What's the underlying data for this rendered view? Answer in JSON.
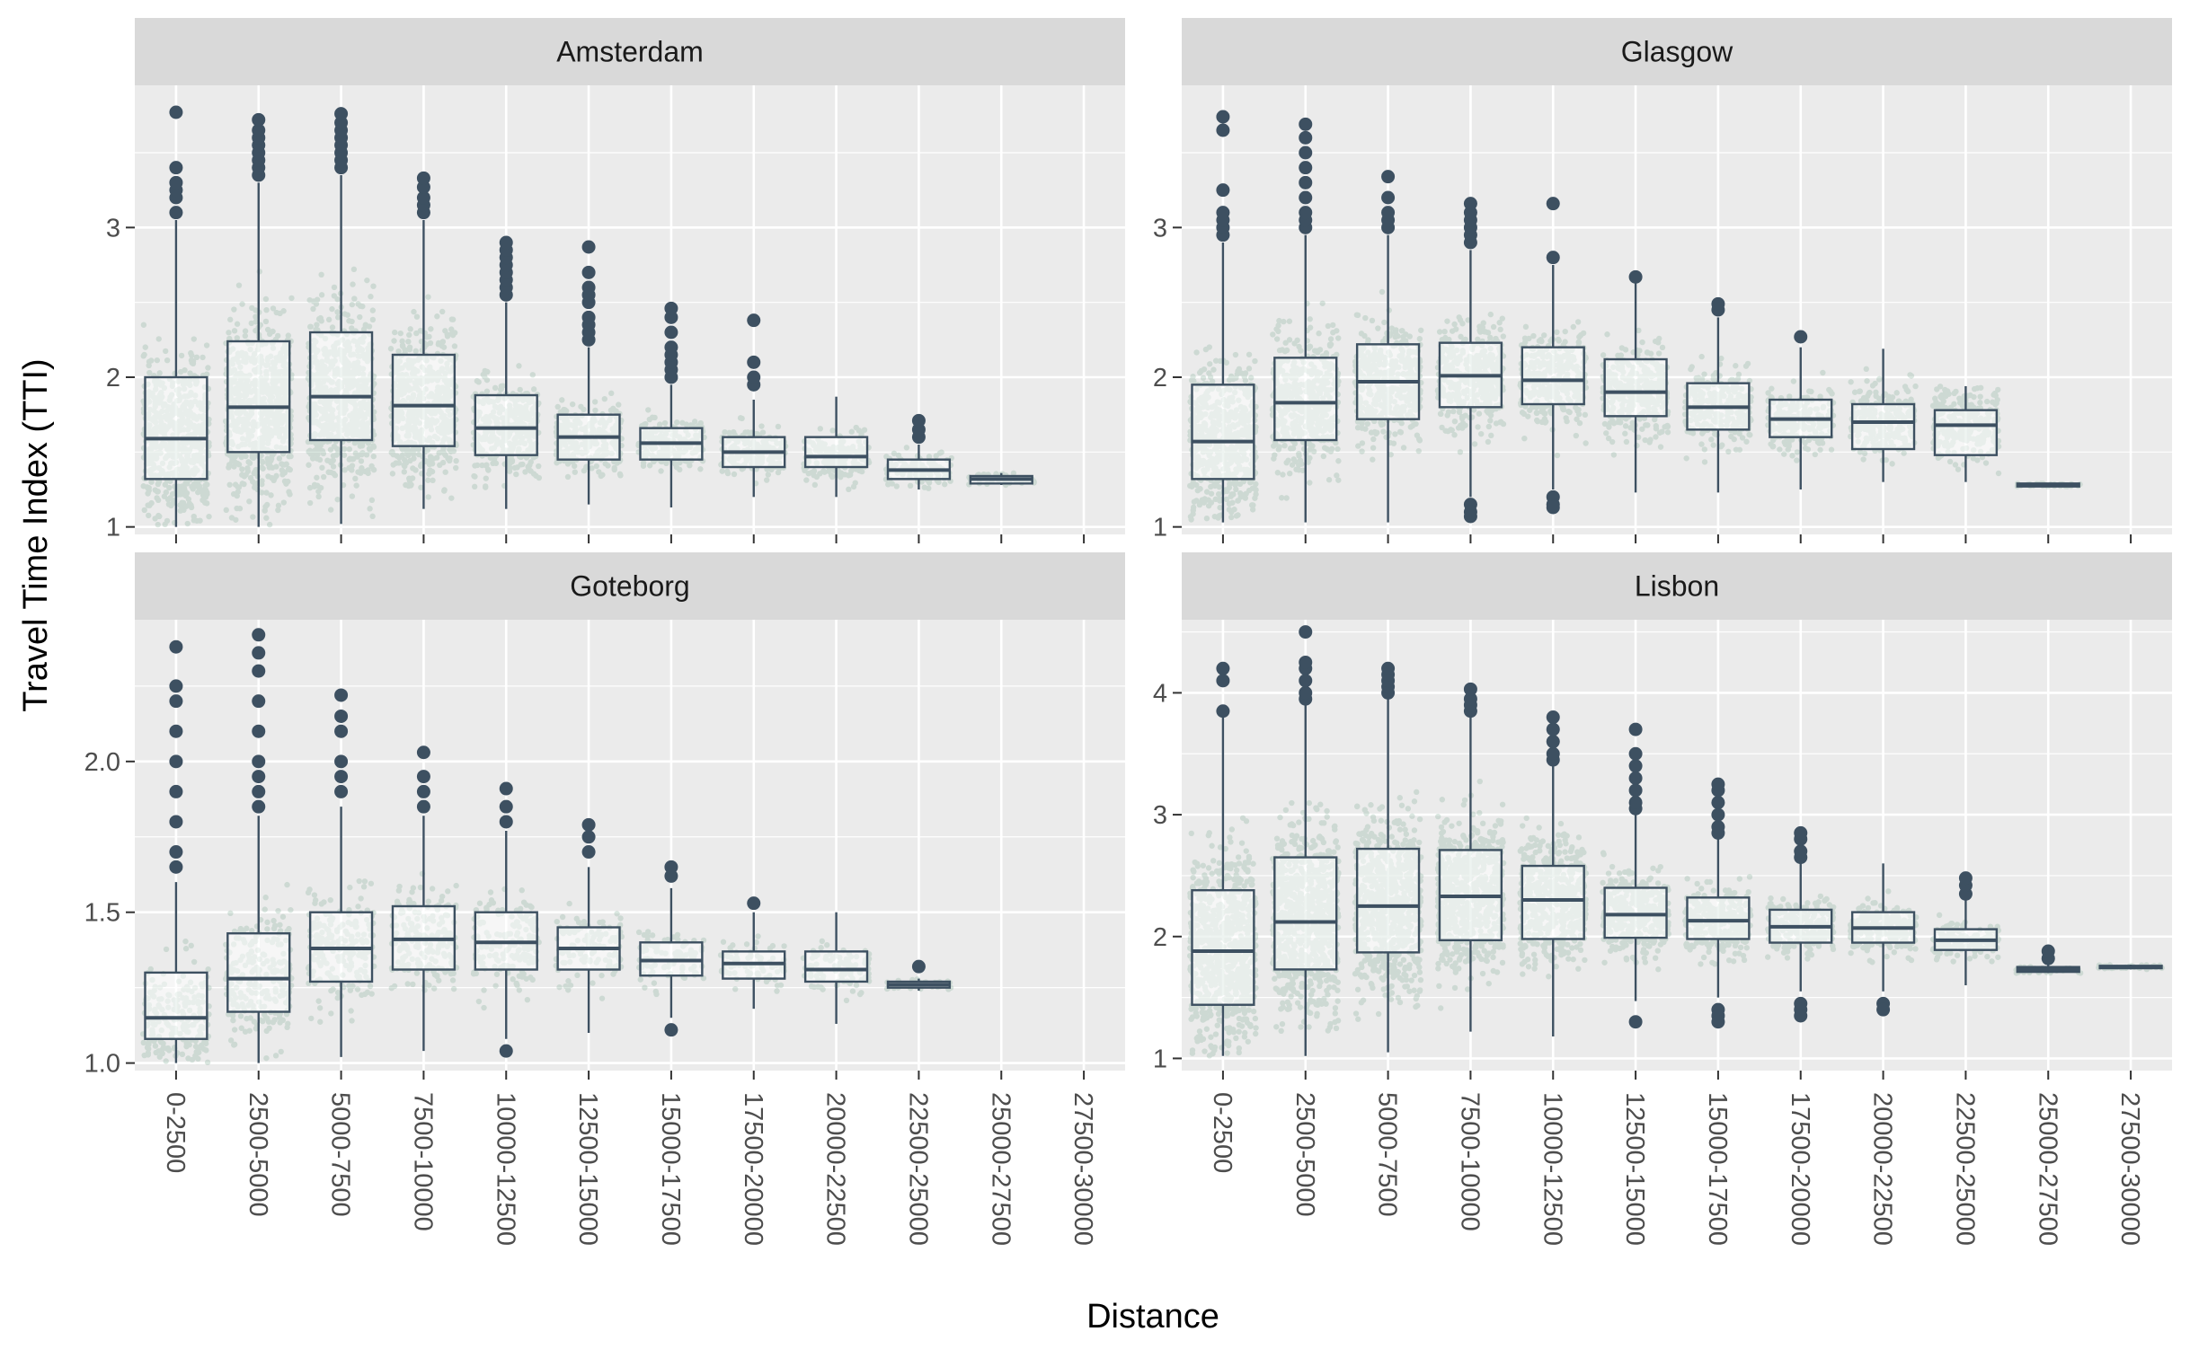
{
  "colors": {
    "panel_bg": "#EBEBEB",
    "strip_bg": "#D9D9D9",
    "grid": "#FFFFFF",
    "jitter_points": "#8FB5A2",
    "box_stroke": "#3D5061",
    "box_fill": "#FFFFFF"
  },
  "chart_data": {
    "type": "box",
    "layout": "facet_wrap 2x2",
    "xlabel": "Distance",
    "ylabel": "Travel Time Index (TTI)",
    "categories": [
      "0-2500",
      "2500-5000",
      "5000-7500",
      "7500-10000",
      "10000-12500",
      "12500-15000",
      "15000-17500",
      "17500-20000",
      "20000-22500",
      "22500-25000",
      "25000-27500",
      "27500-30000"
    ],
    "panels": [
      {
        "name": "Amsterdam",
        "ylim": [
          0.95,
          3.95
        ],
        "yticks": [
          1,
          2,
          3
        ],
        "ytick_labels": [
          "1",
          "2",
          "3"
        ],
        "boxes": [
          {
            "category": "0-2500",
            "q1": 1.32,
            "median": 1.59,
            "q3": 2.0,
            "lower": 1.0,
            "upper": 3.05,
            "outliers": [
              3.1,
              3.2,
              3.25,
              3.3,
              3.4,
              3.77
            ]
          },
          {
            "category": "2500-5000",
            "q1": 1.5,
            "median": 1.8,
            "q3": 2.24,
            "lower": 1.0,
            "upper": 3.3,
            "outliers": [
              3.35,
              3.4,
              3.45,
              3.5,
              3.55,
              3.6,
              3.65,
              3.72
            ]
          },
          {
            "category": "5000-7500",
            "q1": 1.58,
            "median": 1.87,
            "q3": 2.3,
            "lower": 1.02,
            "upper": 3.35,
            "outliers": [
              3.4,
              3.45,
              3.5,
              3.55,
              3.6,
              3.65,
              3.7,
              3.76
            ]
          },
          {
            "category": "7500-10000",
            "q1": 1.54,
            "median": 1.81,
            "q3": 2.15,
            "lower": 1.12,
            "upper": 3.05,
            "outliers": [
              3.1,
              3.15,
              3.2,
              3.27,
              3.33
            ]
          },
          {
            "category": "10000-12500",
            "q1": 1.48,
            "median": 1.66,
            "q3": 1.88,
            "lower": 1.12,
            "upper": 2.5,
            "outliers": [
              2.55,
              2.6,
              2.65,
              2.7,
              2.75,
              2.8,
              2.85,
              2.9
            ]
          },
          {
            "category": "12500-15000",
            "q1": 1.45,
            "median": 1.6,
            "q3": 1.75,
            "lower": 1.15,
            "upper": 2.2,
            "outliers": [
              2.25,
              2.3,
              2.35,
              2.4,
              2.5,
              2.55,
              2.6,
              2.7,
              2.87
            ]
          },
          {
            "category": "15000-17500",
            "q1": 1.45,
            "median": 1.56,
            "q3": 1.66,
            "lower": 1.13,
            "upper": 1.95,
            "outliers": [
              2.0,
              2.05,
              2.1,
              2.15,
              2.2,
              2.3,
              2.4,
              2.46
            ]
          },
          {
            "category": "17500-20000",
            "q1": 1.4,
            "median": 1.5,
            "q3": 1.6,
            "lower": 1.2,
            "upper": 1.85,
            "outliers": [
              1.95,
              2.0,
              2.1,
              2.38
            ]
          },
          {
            "category": "20000-22500",
            "q1": 1.4,
            "median": 1.47,
            "q3": 1.6,
            "lower": 1.2,
            "upper": 1.87,
            "outliers": []
          },
          {
            "category": "22500-25000",
            "q1": 1.32,
            "median": 1.38,
            "q3": 1.45,
            "lower": 1.25,
            "upper": 1.55,
            "outliers": [
              1.6,
              1.65,
              1.71
            ]
          },
          {
            "category": "25000-27500",
            "q1": 1.29,
            "median": 1.32,
            "q3": 1.34,
            "lower": 1.28,
            "upper": 1.36,
            "outliers": []
          },
          {
            "category": "27500-30000",
            "q1": null,
            "median": null,
            "q3": null,
            "lower": null,
            "upper": null,
            "outliers": []
          }
        ]
      },
      {
        "name": "Glasgow",
        "ylim": [
          0.95,
          3.95
        ],
        "yticks": [
          1,
          2,
          3
        ],
        "ytick_labels": [
          "1",
          "2",
          "3"
        ],
        "boxes": [
          {
            "category": "0-2500",
            "q1": 1.32,
            "median": 1.57,
            "q3": 1.95,
            "lower": 1.03,
            "upper": 2.9,
            "outliers": [
              2.95,
              3.0,
              3.05,
              3.1,
              3.25,
              3.65,
              3.74
            ]
          },
          {
            "category": "2500-5000",
            "q1": 1.58,
            "median": 1.83,
            "q3": 2.13,
            "lower": 1.03,
            "upper": 2.95,
            "outliers": [
              3.0,
              3.05,
              3.1,
              3.2,
              3.3,
              3.4,
              3.5,
              3.6,
              3.69
            ]
          },
          {
            "category": "5000-7500",
            "q1": 1.72,
            "median": 1.97,
            "q3": 2.22,
            "lower": 1.03,
            "upper": 2.95,
            "outliers": [
              3.0,
              3.05,
              3.1,
              3.2,
              3.34
            ]
          },
          {
            "category": "7500-10000",
            "q1": 1.8,
            "median": 2.01,
            "q3": 2.23,
            "lower": 1.2,
            "upper": 2.85,
            "outliers": [
              2.9,
              2.95,
              3.0,
              3.05,
              3.1,
              3.16,
              1.15,
              1.1,
              1.07
            ]
          },
          {
            "category": "10000-12500",
            "q1": 1.82,
            "median": 1.98,
            "q3": 2.2,
            "lower": 1.25,
            "upper": 2.75,
            "outliers": [
              2.8,
              3.16,
              1.2,
              1.15,
              1.13
            ]
          },
          {
            "category": "12500-15000",
            "q1": 1.74,
            "median": 1.9,
            "q3": 2.12,
            "lower": 1.23,
            "upper": 2.65,
            "outliers": [
              2.67
            ]
          },
          {
            "category": "15000-17500",
            "q1": 1.65,
            "median": 1.8,
            "q3": 1.96,
            "lower": 1.23,
            "upper": 2.4,
            "outliers": [
              2.45,
              2.49
            ]
          },
          {
            "category": "17500-20000",
            "q1": 1.6,
            "median": 1.72,
            "q3": 1.85,
            "lower": 1.25,
            "upper": 2.2,
            "outliers": [
              2.27
            ]
          },
          {
            "category": "20000-22500",
            "q1": 1.52,
            "median": 1.7,
            "q3": 1.82,
            "lower": 1.3,
            "upper": 2.19,
            "outliers": []
          },
          {
            "category": "22500-25000",
            "q1": 1.48,
            "median": 1.68,
            "q3": 1.78,
            "lower": 1.3,
            "upper": 1.94,
            "outliers": []
          },
          {
            "category": "25000-27500",
            "q1": 1.27,
            "median": 1.28,
            "q3": 1.29,
            "lower": 1.27,
            "upper": 1.29,
            "outliers": []
          },
          {
            "category": "27500-30000",
            "q1": null,
            "median": null,
            "q3": null,
            "lower": null,
            "upper": null,
            "outliers": []
          }
        ]
      },
      {
        "name": "Goteborg",
        "ylim": [
          0.975,
          2.47
        ],
        "yticks": [
          1.0,
          1.5,
          2.0
        ],
        "ytick_labels": [
          "1.0",
          "1.5",
          "2.0"
        ],
        "boxes": [
          {
            "category": "0-2500",
            "q1": 1.08,
            "median": 1.15,
            "q3": 1.3,
            "lower": 1.0,
            "upper": 1.6,
            "outliers": [
              1.65,
              1.7,
              1.8,
              1.9,
              2.0,
              2.1,
              2.2,
              2.25,
              2.38
            ]
          },
          {
            "category": "2500-5000",
            "q1": 1.17,
            "median": 1.28,
            "q3": 1.43,
            "lower": 1.0,
            "upper": 1.82,
            "outliers": [
              1.85,
              1.9,
              1.95,
              2.0,
              2.1,
              2.2,
              2.3,
              2.36,
              2.42
            ]
          },
          {
            "category": "5000-7500",
            "q1": 1.27,
            "median": 1.38,
            "q3": 1.5,
            "lower": 1.02,
            "upper": 1.85,
            "outliers": [
              1.9,
              1.95,
              2.0,
              2.1,
              2.15,
              2.22
            ]
          },
          {
            "category": "7500-10000",
            "q1": 1.31,
            "median": 1.41,
            "q3": 1.52,
            "lower": 1.04,
            "upper": 1.82,
            "outliers": [
              1.85,
              1.9,
              1.95,
              2.03
            ]
          },
          {
            "category": "10000-12500",
            "q1": 1.31,
            "median": 1.4,
            "q3": 1.5,
            "lower": 1.08,
            "upper": 1.77,
            "outliers": [
              1.8,
              1.85,
              1.91,
              1.04
            ]
          },
          {
            "category": "12500-15000",
            "q1": 1.31,
            "median": 1.38,
            "q3": 1.45,
            "lower": 1.1,
            "upper": 1.65,
            "outliers": [
              1.7,
              1.75,
              1.79
            ]
          },
          {
            "category": "15000-17500",
            "q1": 1.29,
            "median": 1.34,
            "q3": 1.4,
            "lower": 1.15,
            "upper": 1.58,
            "outliers": [
              1.62,
              1.65,
              1.11
            ]
          },
          {
            "category": "17500-20000",
            "q1": 1.28,
            "median": 1.33,
            "q3": 1.37,
            "lower": 1.18,
            "upper": 1.5,
            "outliers": [
              1.53
            ]
          },
          {
            "category": "20000-22500",
            "q1": 1.27,
            "median": 1.31,
            "q3": 1.37,
            "lower": 1.13,
            "upper": 1.5,
            "outliers": []
          },
          {
            "category": "22500-25000",
            "q1": 1.25,
            "median": 1.26,
            "q3": 1.27,
            "lower": 1.24,
            "upper": 1.28,
            "outliers": [
              1.32
            ]
          },
          {
            "category": "25000-27500",
            "q1": null,
            "median": null,
            "q3": null,
            "lower": null,
            "upper": null,
            "outliers": []
          },
          {
            "category": "27500-30000",
            "q1": null,
            "median": null,
            "q3": null,
            "lower": null,
            "upper": null,
            "outliers": []
          }
        ]
      },
      {
        "name": "Lisbon",
        "ylim": [
          0.9,
          4.6
        ],
        "yticks": [
          1,
          2,
          3,
          4
        ],
        "ytick_labels": [
          "1",
          "2",
          "3",
          "4"
        ],
        "boxes": [
          {
            "category": "0-2500",
            "q1": 1.44,
            "median": 1.88,
            "q3": 2.38,
            "lower": 1.02,
            "upper": 3.8,
            "outliers": [
              3.85,
              4.1,
              4.2
            ]
          },
          {
            "category": "2500-5000",
            "q1": 1.73,
            "median": 2.12,
            "q3": 2.65,
            "lower": 1.02,
            "upper": 3.9,
            "outliers": [
              3.95,
              4.0,
              4.1,
              4.2,
              4.25,
              4.5
            ]
          },
          {
            "category": "5000-7500",
            "q1": 1.87,
            "median": 2.25,
            "q3": 2.72,
            "lower": 1.05,
            "upper": 3.95,
            "outliers": [
              4.0,
              4.05,
              4.1,
              4.15,
              4.2
            ]
          },
          {
            "category": "7500-10000",
            "q1": 1.97,
            "median": 2.33,
            "q3": 2.71,
            "lower": 1.22,
            "upper": 3.8,
            "outliers": [
              3.85,
              3.9,
              3.95,
              4.03
            ]
          },
          {
            "category": "10000-12500",
            "q1": 1.98,
            "median": 2.3,
            "q3": 2.58,
            "lower": 1.18,
            "upper": 3.42,
            "outliers": [
              3.45,
              3.5,
              3.6,
              3.7,
              3.8
            ]
          },
          {
            "category": "12500-15000",
            "q1": 1.99,
            "median": 2.18,
            "q3": 2.4,
            "lower": 1.47,
            "upper": 3.0,
            "outliers": [
              3.05,
              3.1,
              3.2,
              3.3,
              3.4,
              3.5,
              3.7,
              1.3
            ]
          },
          {
            "category": "15000-17500",
            "q1": 1.98,
            "median": 2.13,
            "q3": 2.32,
            "lower": 1.5,
            "upper": 2.8,
            "outliers": [
              2.85,
              2.9,
              3.0,
              3.1,
              3.2,
              3.25,
              1.4,
              1.35,
              1.3
            ]
          },
          {
            "category": "17500-20000",
            "q1": 1.95,
            "median": 2.08,
            "q3": 2.22,
            "lower": 1.55,
            "upper": 2.6,
            "outliers": [
              2.65,
              2.7,
              2.8,
              2.85,
              1.45,
              1.4,
              1.35
            ]
          },
          {
            "category": "20000-22500",
            "q1": 1.95,
            "median": 2.07,
            "q3": 2.2,
            "lower": 1.55,
            "upper": 2.6,
            "outliers": [
              1.45,
              1.4
            ]
          },
          {
            "category": "22500-25000",
            "q1": 1.89,
            "median": 1.97,
            "q3": 2.06,
            "lower": 1.6,
            "upper": 2.3,
            "outliers": [
              2.35,
              2.42,
              2.48
            ]
          },
          {
            "category": "25000-27500",
            "q1": 1.71,
            "median": 1.73,
            "q3": 1.75,
            "lower": 1.7,
            "upper": 1.78,
            "outliers": [
              1.82,
              1.88
            ]
          },
          {
            "category": "27500-30000",
            "q1": 1.74,
            "median": 1.75,
            "q3": 1.76,
            "lower": 1.73,
            "upper": 1.77,
            "outliers": []
          }
        ]
      }
    ]
  }
}
